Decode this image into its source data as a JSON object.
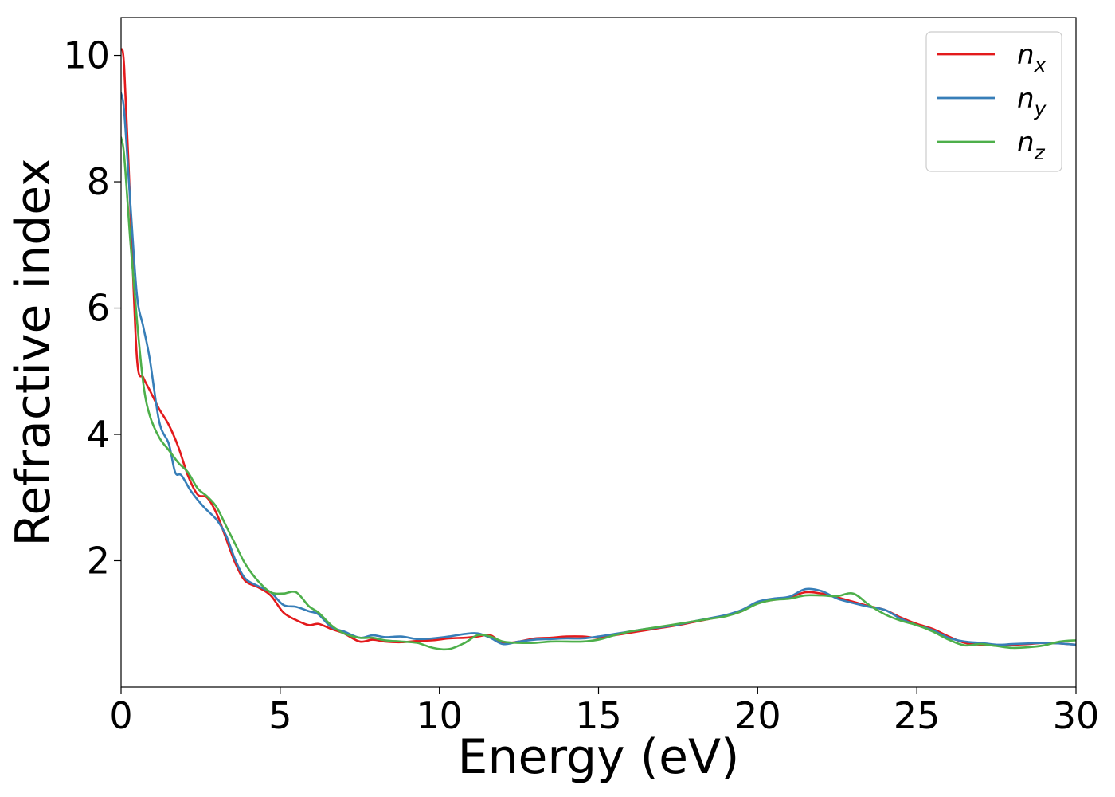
{
  "chart_data": {
    "type": "line",
    "title": "",
    "xlabel": "Energy (eV)",
    "ylabel": "Refractive index",
    "xlim": [
      0,
      30
    ],
    "ylim": [
      0.0,
      10.6
    ],
    "xticks": [
      0,
      5,
      10,
      15,
      20,
      25,
      30
    ],
    "yticks": [
      2,
      4,
      6,
      8,
      10
    ],
    "xtick_labels": [
      "0",
      "5",
      "10",
      "15",
      "20",
      "25",
      "30"
    ],
    "ytick_labels": [
      "2",
      "4",
      "6",
      "8",
      "10"
    ],
    "grid": false,
    "legend_position": "top-right",
    "series": [
      {
        "name": "n_x",
        "legend_base": "n",
        "legend_sub": "x",
        "color": "#e31a1c",
        "points": [
          [
            0,
            10.1
          ],
          [
            0.1,
            9.8
          ],
          [
            0.3,
            7.5
          ],
          [
            0.5,
            5.2
          ],
          [
            0.7,
            4.9
          ],
          [
            0.9,
            4.7
          ],
          [
            1.2,
            4.4
          ],
          [
            1.5,
            4.15
          ],
          [
            1.8,
            3.8
          ],
          [
            2.1,
            3.35
          ],
          [
            2.4,
            3.05
          ],
          [
            2.7,
            3.0
          ],
          [
            3.0,
            2.75
          ],
          [
            3.3,
            2.35
          ],
          [
            3.6,
            1.95
          ],
          [
            3.9,
            1.68
          ],
          [
            4.3,
            1.58
          ],
          [
            4.7,
            1.45
          ],
          [
            5.1,
            1.18
          ],
          [
            5.5,
            1.06
          ],
          [
            5.9,
            0.98
          ],
          [
            6.2,
            1.0
          ],
          [
            6.6,
            0.92
          ],
          [
            7.0,
            0.85
          ],
          [
            7.5,
            0.72
          ],
          [
            7.9,
            0.75
          ],
          [
            8.3,
            0.72
          ],
          [
            8.8,
            0.71
          ],
          [
            9.3,
            0.73
          ],
          [
            9.8,
            0.74
          ],
          [
            10.3,
            0.77
          ],
          [
            10.8,
            0.78
          ],
          [
            11.2,
            0.8
          ],
          [
            11.6,
            0.82
          ],
          [
            12.0,
            0.7
          ],
          [
            12.5,
            0.72
          ],
          [
            13.0,
            0.77
          ],
          [
            13.5,
            0.78
          ],
          [
            14.0,
            0.8
          ],
          [
            14.5,
            0.8
          ],
          [
            15.0,
            0.78
          ],
          [
            15.5,
            0.82
          ],
          [
            16.0,
            0.86
          ],
          [
            16.5,
            0.9
          ],
          [
            17.0,
            0.94
          ],
          [
            17.5,
            0.98
          ],
          [
            18.0,
            1.03
          ],
          [
            18.5,
            1.08
          ],
          [
            19.0,
            1.13
          ],
          [
            19.5,
            1.2
          ],
          [
            20.0,
            1.33
          ],
          [
            20.5,
            1.38
          ],
          [
            21.0,
            1.42
          ],
          [
            21.5,
            1.5
          ],
          [
            22.0,
            1.48
          ],
          [
            22.5,
            1.42
          ],
          [
            23.0,
            1.35
          ],
          [
            23.5,
            1.28
          ],
          [
            24.0,
            1.22
          ],
          [
            24.5,
            1.1
          ],
          [
            25.0,
            1.0
          ],
          [
            25.5,
            0.92
          ],
          [
            26.0,
            0.8
          ],
          [
            26.5,
            0.7
          ],
          [
            27.0,
            0.67
          ],
          [
            27.5,
            0.66
          ],
          [
            28.0,
            0.67
          ],
          [
            28.5,
            0.68
          ],
          [
            29.0,
            0.7
          ],
          [
            29.5,
            0.69
          ],
          [
            30.0,
            0.67
          ]
        ]
      },
      {
        "name": "n_y",
        "legend_base": "n",
        "legend_sub": "y",
        "color": "#377eb8",
        "points": [
          [
            0,
            9.4
          ],
          [
            0.1,
            9.1
          ],
          [
            0.3,
            7.6
          ],
          [
            0.5,
            6.2
          ],
          [
            0.7,
            5.7
          ],
          [
            0.9,
            5.2
          ],
          [
            1.2,
            4.2
          ],
          [
            1.5,
            3.85
          ],
          [
            1.7,
            3.4
          ],
          [
            1.9,
            3.35
          ],
          [
            2.2,
            3.1
          ],
          [
            2.6,
            2.85
          ],
          [
            3.0,
            2.65
          ],
          [
            3.3,
            2.4
          ],
          [
            3.6,
            2.0
          ],
          [
            3.9,
            1.72
          ],
          [
            4.3,
            1.6
          ],
          [
            4.7,
            1.5
          ],
          [
            5.1,
            1.3
          ],
          [
            5.5,
            1.27
          ],
          [
            5.9,
            1.2
          ],
          [
            6.2,
            1.15
          ],
          [
            6.6,
            0.95
          ],
          [
            7.0,
            0.88
          ],
          [
            7.5,
            0.78
          ],
          [
            7.9,
            0.82
          ],
          [
            8.3,
            0.79
          ],
          [
            8.8,
            0.8
          ],
          [
            9.3,
            0.76
          ],
          [
            9.8,
            0.77
          ],
          [
            10.3,
            0.8
          ],
          [
            10.8,
            0.84
          ],
          [
            11.2,
            0.85
          ],
          [
            11.6,
            0.78
          ],
          [
            12.0,
            0.68
          ],
          [
            12.5,
            0.72
          ],
          [
            13.0,
            0.75
          ],
          [
            13.5,
            0.76
          ],
          [
            14.0,
            0.77
          ],
          [
            14.5,
            0.77
          ],
          [
            15.0,
            0.8
          ],
          [
            15.5,
            0.84
          ],
          [
            16.0,
            0.88
          ],
          [
            16.5,
            0.92
          ],
          [
            17.0,
            0.95
          ],
          [
            17.5,
            0.99
          ],
          [
            18.0,
            1.04
          ],
          [
            18.5,
            1.09
          ],
          [
            19.0,
            1.14
          ],
          [
            19.5,
            1.22
          ],
          [
            20.0,
            1.35
          ],
          [
            20.5,
            1.4
          ],
          [
            21.0,
            1.43
          ],
          [
            21.5,
            1.55
          ],
          [
            22.0,
            1.52
          ],
          [
            22.5,
            1.4
          ],
          [
            23.0,
            1.33
          ],
          [
            23.5,
            1.27
          ],
          [
            24.0,
            1.22
          ],
          [
            24.5,
            1.08
          ],
          [
            25.0,
            0.98
          ],
          [
            25.5,
            0.9
          ],
          [
            26.0,
            0.78
          ],
          [
            26.5,
            0.72
          ],
          [
            27.0,
            0.7
          ],
          [
            27.5,
            0.67
          ],
          [
            28.0,
            0.68
          ],
          [
            28.5,
            0.69
          ],
          [
            29.0,
            0.7
          ],
          [
            29.5,
            0.69
          ],
          [
            30.0,
            0.67
          ]
        ]
      },
      {
        "name": "n_z",
        "legend_base": "n",
        "legend_sub": "z",
        "color": "#4daf4a",
        "points": [
          [
            0,
            8.7
          ],
          [
            0.1,
            8.4
          ],
          [
            0.3,
            7.0
          ],
          [
            0.5,
            5.8
          ],
          [
            0.7,
            4.8
          ],
          [
            0.9,
            4.3
          ],
          [
            1.2,
            3.95
          ],
          [
            1.5,
            3.75
          ],
          [
            1.8,
            3.55
          ],
          [
            2.1,
            3.4
          ],
          [
            2.4,
            3.15
          ],
          [
            2.7,
            3.02
          ],
          [
            3.0,
            2.85
          ],
          [
            3.3,
            2.55
          ],
          [
            3.6,
            2.25
          ],
          [
            3.9,
            1.95
          ],
          [
            4.3,
            1.68
          ],
          [
            4.7,
            1.5
          ],
          [
            5.1,
            1.48
          ],
          [
            5.5,
            1.5
          ],
          [
            5.9,
            1.28
          ],
          [
            6.2,
            1.18
          ],
          [
            6.6,
            0.98
          ],
          [
            7.0,
            0.85
          ],
          [
            7.5,
            0.78
          ],
          [
            7.9,
            0.78
          ],
          [
            8.3,
            0.74
          ],
          [
            8.8,
            0.72
          ],
          [
            9.3,
            0.7
          ],
          [
            9.8,
            0.62
          ],
          [
            10.3,
            0.6
          ],
          [
            10.8,
            0.7
          ],
          [
            11.2,
            0.82
          ],
          [
            11.6,
            0.8
          ],
          [
            12.0,
            0.72
          ],
          [
            12.5,
            0.7
          ],
          [
            13.0,
            0.7
          ],
          [
            13.5,
            0.72
          ],
          [
            14.0,
            0.72
          ],
          [
            14.5,
            0.72
          ],
          [
            15.0,
            0.75
          ],
          [
            15.5,
            0.82
          ],
          [
            16.0,
            0.88
          ],
          [
            16.5,
            0.92
          ],
          [
            17.0,
            0.96
          ],
          [
            17.5,
            1.0
          ],
          [
            18.0,
            1.04
          ],
          [
            18.5,
            1.08
          ],
          [
            19.0,
            1.12
          ],
          [
            19.5,
            1.2
          ],
          [
            20.0,
            1.32
          ],
          [
            20.5,
            1.38
          ],
          [
            21.0,
            1.4
          ],
          [
            21.5,
            1.45
          ],
          [
            22.0,
            1.45
          ],
          [
            22.5,
            1.44
          ],
          [
            23.0,
            1.48
          ],
          [
            23.5,
            1.3
          ],
          [
            24.0,
            1.15
          ],
          [
            24.5,
            1.05
          ],
          [
            25.0,
            0.98
          ],
          [
            25.5,
            0.88
          ],
          [
            26.0,
            0.75
          ],
          [
            26.5,
            0.66
          ],
          [
            27.0,
            0.68
          ],
          [
            27.5,
            0.65
          ],
          [
            28.0,
            0.62
          ],
          [
            28.5,
            0.63
          ],
          [
            29.0,
            0.66
          ],
          [
            29.5,
            0.72
          ],
          [
            30.0,
            0.74
          ]
        ]
      }
    ]
  }
}
